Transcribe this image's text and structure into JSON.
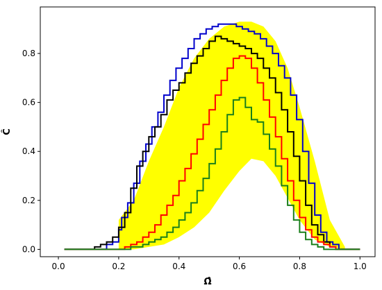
{
  "chart_data": {
    "type": "line",
    "xlabel": "Ω̂",
    "ylabel": "Ĉ",
    "xlim": [
      -0.06,
      1.05
    ],
    "ylim": [
      -0.03,
      0.99
    ],
    "xticks": [
      0.0,
      0.2,
      0.4,
      0.6,
      0.8,
      1.0
    ],
    "xtick_labels": [
      "0.0",
      "0.2",
      "0.4",
      "0.6",
      "0.8",
      "1.0"
    ],
    "yticks": [
      0.0,
      0.2,
      0.4,
      0.6,
      0.8
    ],
    "ytick_labels": [
      "0.0",
      "0.2",
      "0.4",
      "0.6",
      "0.8"
    ],
    "grid": false,
    "legend": "none",
    "band": {
      "color": "#ffff00",
      "x": [
        0.2,
        0.25,
        0.3,
        0.35,
        0.4,
        0.45,
        0.5,
        0.55,
        0.6,
        0.64,
        0.68,
        0.72,
        0.76,
        0.8,
        0.85,
        0.9,
        0.95
      ],
      "lower": [
        0.0,
        0.0,
        0.01,
        0.02,
        0.05,
        0.09,
        0.15,
        0.24,
        0.32,
        0.37,
        0.36,
        0.3,
        0.21,
        0.12,
        0.04,
        0.01,
        0.0
      ],
      "upper": [
        0.12,
        0.2,
        0.36,
        0.5,
        0.66,
        0.78,
        0.86,
        0.91,
        0.93,
        0.93,
        0.91,
        0.85,
        0.74,
        0.58,
        0.36,
        0.12,
        0.01
      ]
    },
    "series": [
      {
        "color": "#0000cc",
        "x": [
          0.02,
          0.1,
          0.14,
          0.16,
          0.18,
          0.2,
          0.21,
          0.23,
          0.25,
          0.27,
          0.29,
          0.31,
          0.33,
          0.35,
          0.37,
          0.39,
          0.41,
          0.43,
          0.45,
          0.47,
          0.49,
          0.51,
          0.53,
          0.55,
          0.57,
          0.59,
          0.61,
          0.63,
          0.65,
          0.67,
          0.69,
          0.71,
          0.73,
          0.75,
          0.77,
          0.79,
          0.81,
          0.83,
          0.85,
          0.87,
          0.89,
          0.91,
          0.93,
          0.95,
          1.0
        ],
        "y": [
          0.0,
          0.0,
          0.0,
          0.02,
          0.03,
          0.08,
          0.13,
          0.19,
          0.27,
          0.36,
          0.43,
          0.5,
          0.56,
          0.63,
          0.69,
          0.74,
          0.78,
          0.82,
          0.86,
          0.88,
          0.9,
          0.91,
          0.92,
          0.92,
          0.92,
          0.91,
          0.9,
          0.89,
          0.88,
          0.86,
          0.83,
          0.8,
          0.75,
          0.7,
          0.63,
          0.53,
          0.4,
          0.27,
          0.14,
          0.07,
          0.03,
          0.02,
          0.0,
          0.0,
          0.0
        ]
      },
      {
        "color": "#000000",
        "x": [
          0.02,
          0.1,
          0.12,
          0.14,
          0.16,
          0.18,
          0.2,
          0.22,
          0.24,
          0.26,
          0.28,
          0.3,
          0.32,
          0.34,
          0.36,
          0.38,
          0.4,
          0.42,
          0.44,
          0.46,
          0.48,
          0.5,
          0.52,
          0.54,
          0.56,
          0.58,
          0.6,
          0.62,
          0.64,
          0.66,
          0.68,
          0.7,
          0.72,
          0.74,
          0.76,
          0.78,
          0.8,
          0.82,
          0.84,
          0.86,
          0.88,
          0.9,
          0.92,
          0.94,
          1.0
        ],
        "y": [
          0.0,
          0.0,
          0.01,
          0.02,
          0.03,
          0.05,
          0.09,
          0.15,
          0.25,
          0.34,
          0.4,
          0.46,
          0.5,
          0.55,
          0.61,
          0.65,
          0.68,
          0.72,
          0.76,
          0.79,
          0.82,
          0.85,
          0.87,
          0.86,
          0.85,
          0.84,
          0.83,
          0.82,
          0.8,
          0.78,
          0.74,
          0.7,
          0.64,
          0.57,
          0.48,
          0.38,
          0.28,
          0.18,
          0.1,
          0.06,
          0.03,
          0.01,
          0.0,
          0.0,
          0.0
        ]
      },
      {
        "color": "#ff0000",
        "x": [
          0.02,
          0.2,
          0.22,
          0.24,
          0.26,
          0.28,
          0.3,
          0.32,
          0.34,
          0.36,
          0.38,
          0.4,
          0.42,
          0.44,
          0.46,
          0.48,
          0.5,
          0.52,
          0.54,
          0.56,
          0.58,
          0.6,
          0.62,
          0.64,
          0.66,
          0.68,
          0.7,
          0.72,
          0.74,
          0.76,
          0.78,
          0.8,
          0.82,
          0.84,
          0.86,
          0.88,
          0.9,
          0.92,
          0.94,
          1.0
        ],
        "y": [
          0.0,
          0.0,
          0.01,
          0.02,
          0.03,
          0.05,
          0.07,
          0.1,
          0.14,
          0.18,
          0.22,
          0.28,
          0.33,
          0.39,
          0.45,
          0.51,
          0.57,
          0.63,
          0.69,
          0.74,
          0.78,
          0.79,
          0.78,
          0.74,
          0.68,
          0.61,
          0.54,
          0.46,
          0.37,
          0.28,
          0.2,
          0.13,
          0.08,
          0.05,
          0.03,
          0.02,
          0.01,
          0.0,
          0.0,
          0.0
        ]
      },
      {
        "color": "#1a7f1a",
        "x": [
          0.02,
          0.2,
          0.24,
          0.28,
          0.3,
          0.32,
          0.34,
          0.36,
          0.38,
          0.4,
          0.42,
          0.44,
          0.46,
          0.48,
          0.5,
          0.52,
          0.54,
          0.56,
          0.58,
          0.6,
          0.62,
          0.64,
          0.66,
          0.68,
          0.7,
          0.72,
          0.74,
          0.76,
          0.78,
          0.8,
          0.82,
          0.84,
          0.86,
          0.88,
          0.9,
          1.0
        ],
        "y": [
          0.0,
          0.0,
          0.01,
          0.02,
          0.03,
          0.04,
          0.05,
          0.07,
          0.09,
          0.12,
          0.15,
          0.19,
          0.24,
          0.29,
          0.35,
          0.41,
          0.48,
          0.55,
          0.61,
          0.62,
          0.58,
          0.53,
          0.52,
          0.47,
          0.41,
          0.34,
          0.26,
          0.18,
          0.12,
          0.07,
          0.04,
          0.02,
          0.01,
          0.0,
          0.0,
          0.0
        ]
      }
    ]
  }
}
